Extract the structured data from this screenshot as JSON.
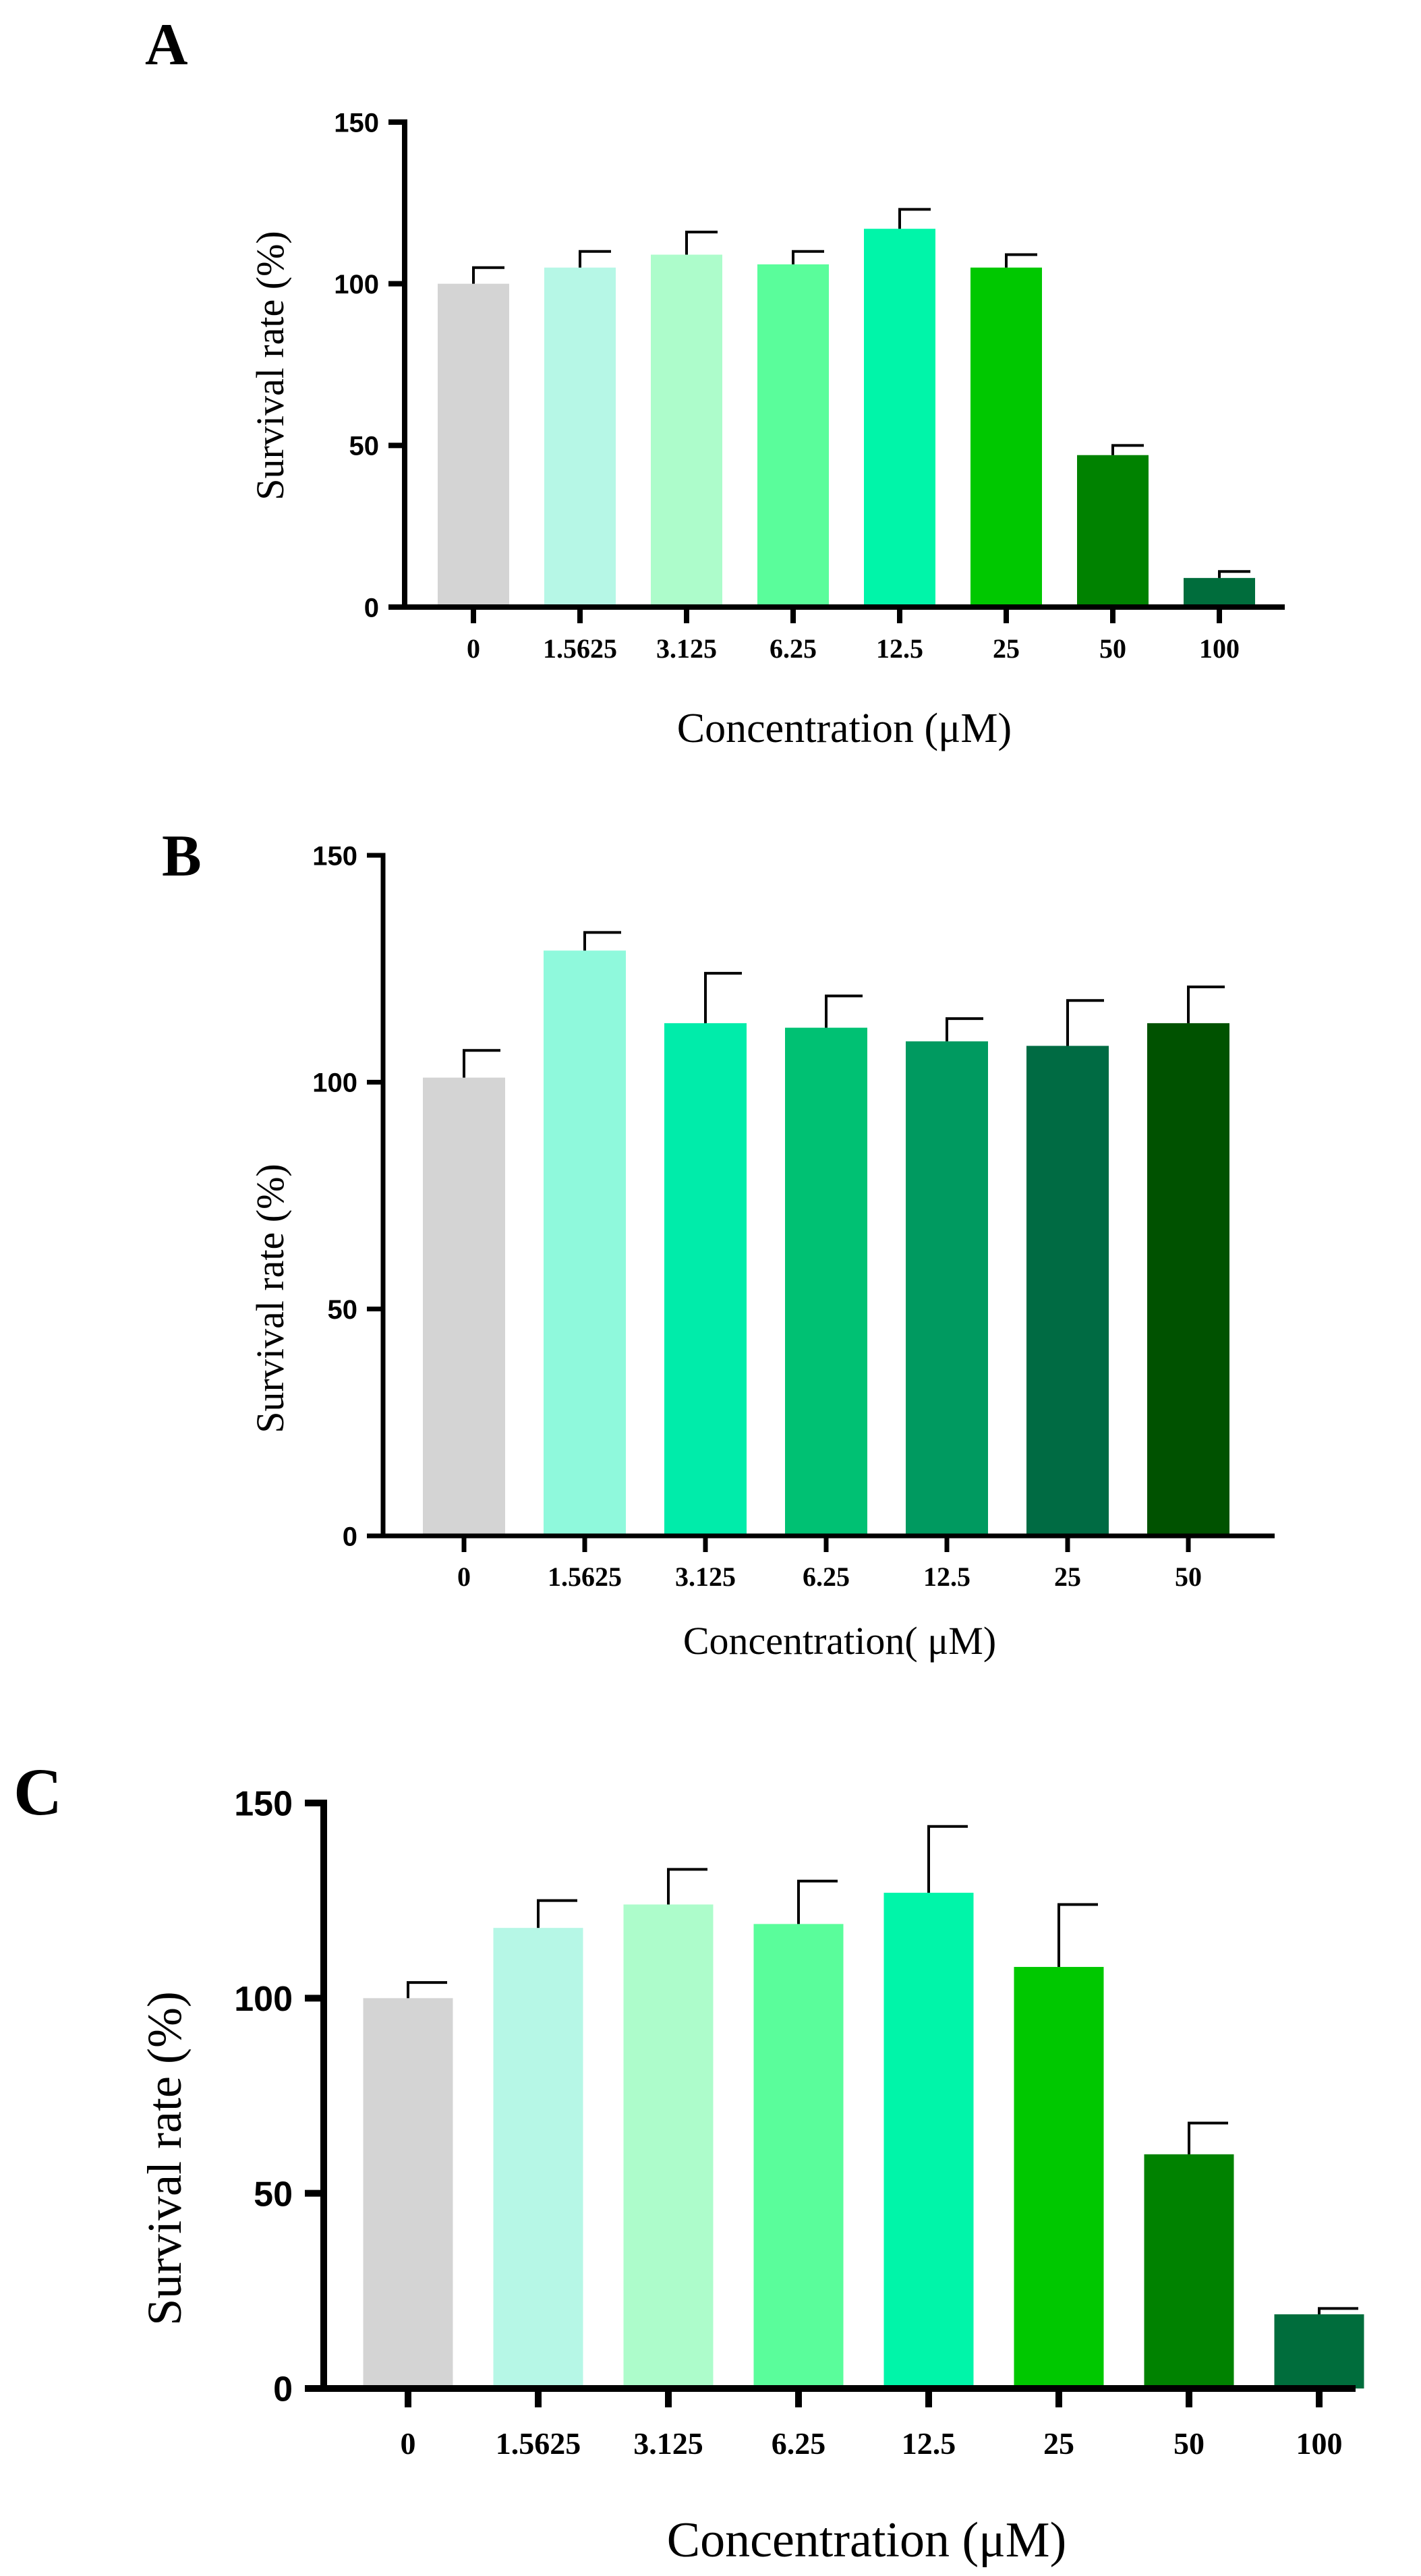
{
  "chart_data": [
    {
      "panel_label": "A",
      "type": "bar",
      "categories": [
        "0",
        "1.5625",
        "3.125",
        "6.25",
        "12.5",
        "25",
        "50",
        "100"
      ],
      "values": [
        100,
        105,
        109,
        106,
        117,
        105,
        47,
        9
      ],
      "errors": [
        5,
        5,
        7,
        4,
        6,
        4,
        3,
        2
      ],
      "colors": [
        "#d4d4d4",
        "#b6f7e6",
        "#adfccb",
        "#5afd9b",
        "#00f5a9",
        "#00c800",
        "#008200",
        "#006d3c"
      ],
      "title": "",
      "xlabel": "Concentration (μM)",
      "ylabel": "Survival rate  (%)",
      "ylim": [
        0,
        150
      ],
      "yticks": [
        "0",
        "50",
        "100",
        "150"
      ],
      "grid": false
    },
    {
      "panel_label": "B",
      "type": "bar",
      "categories": [
        "0",
        "1.5625",
        "3.125",
        "6.25",
        "12.5",
        "25",
        "50"
      ],
      "values": [
        101,
        129,
        113,
        112,
        109,
        108,
        113
      ],
      "errors": [
        6,
        4,
        11,
        7,
        5,
        10,
        8
      ],
      "colors": [
        "#d4d4d4",
        "#8ff9dc",
        "#00ecaa",
        "#00c173",
        "#009a60",
        "#006b43",
        "#005200"
      ],
      "title": "",
      "xlabel": "Concentration( μM)",
      "ylabel": "Survival rate (%)",
      "ylim": [
        0,
        150
      ],
      "yticks": [
        "0",
        "50",
        "100",
        "150"
      ],
      "grid": false
    },
    {
      "panel_label": "C",
      "type": "bar",
      "categories": [
        "0",
        "1.5625",
        "3.125",
        "6.25",
        "12.5",
        "25",
        "50",
        "100"
      ],
      "values": [
        100,
        118,
        124,
        119,
        127,
        108,
        60,
        19
      ],
      "errors": [
        4,
        7,
        9,
        11,
        17,
        16,
        8,
        1.5
      ],
      "colors": [
        "#d4d4d4",
        "#b6f7e6",
        "#adfccb",
        "#5afd9b",
        "#00f5a9",
        "#00c800",
        "#008200",
        "#006d3c"
      ],
      "title": "",
      "xlabel": "Concentration (μM)",
      "ylabel": "Survival rate  (%)",
      "ylim": [
        0,
        150
      ],
      "yticks": [
        "0",
        "50",
        "100",
        "150"
      ],
      "grid": false
    }
  ]
}
